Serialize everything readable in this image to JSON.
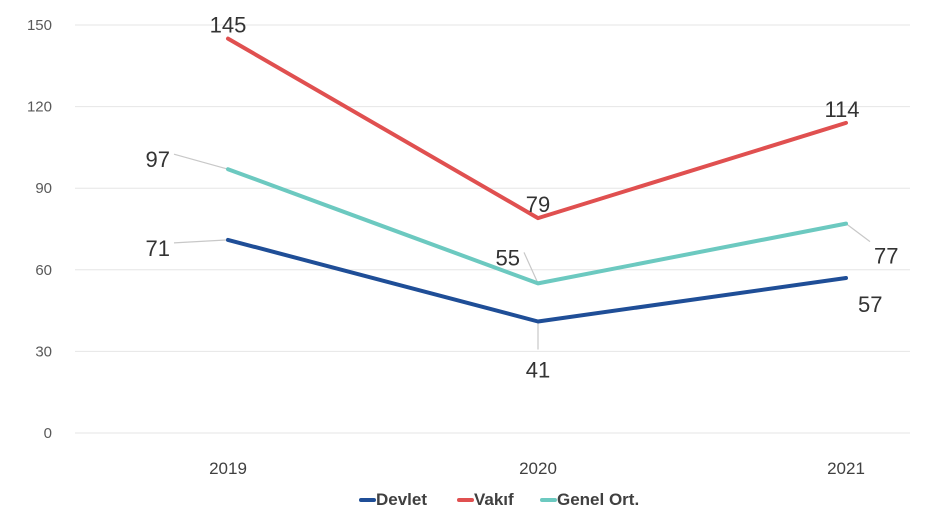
{
  "chart_data": {
    "type": "line",
    "categories": [
      "2019",
      "2020",
      "2021"
    ],
    "series": [
      {
        "name": "Devlet",
        "values": [
          71,
          41,
          57
        ],
        "color": "#1f4e97"
      },
      {
        "name": "Vakıf",
        "values": [
          145,
          79,
          114
        ],
        "color": "#e05050"
      },
      {
        "name": "Genel Ort.",
        "values": [
          97,
          55,
          77
        ],
        "color": "#6cc9c0"
      }
    ],
    "yticks": [
      0,
      30,
      60,
      90,
      120,
      150
    ],
    "ylim": [
      0,
      150
    ],
    "grid": true,
    "legend_position": "bottom",
    "legend": [
      "Devlet",
      "Vakıf",
      "Genel Ort."
    ],
    "data_labels": true
  }
}
